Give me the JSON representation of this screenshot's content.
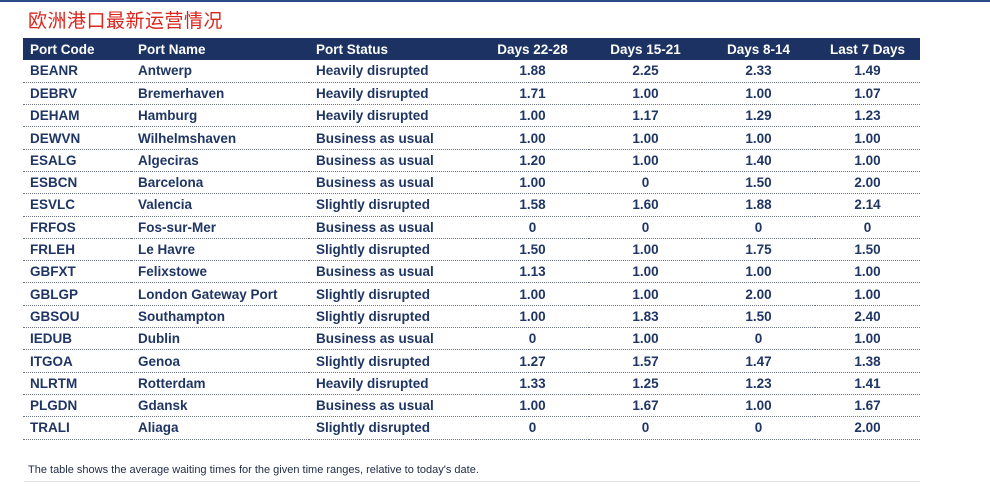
{
  "title": "欧洲港口最新运营情况",
  "table": {
    "headers": [
      "Port Code",
      "Port Name",
      "Port Status",
      "Days 22-28",
      "Days 15-21",
      "Days 8-14",
      "Last 7 Days"
    ],
    "rows": [
      [
        "BEANR",
        "Antwerp",
        "Heavily disrupted",
        "1.88",
        "2.25",
        "2.33",
        "1.49"
      ],
      [
        "DEBRV",
        "Bremerhaven",
        "Heavily disrupted",
        "1.71",
        "1.00",
        "1.00",
        "1.07"
      ],
      [
        "DEHAM",
        "Hamburg",
        "Heavily disrupted",
        "1.00",
        "1.17",
        "1.29",
        "1.23"
      ],
      [
        "DEWVN",
        "Wilhelmshaven",
        "Business as usual",
        "1.00",
        "1.00",
        "1.00",
        "1.00"
      ],
      [
        "ESALG",
        "Algeciras",
        "Business as usual",
        "1.20",
        "1.00",
        "1.40",
        "1.00"
      ],
      [
        "ESBCN",
        "Barcelona",
        "Business as usual",
        "1.00",
        "0",
        "1.50",
        "2.00"
      ],
      [
        "ESVLC",
        "Valencia",
        "Slightly disrupted",
        "1.58",
        "1.60",
        "1.88",
        "2.14"
      ],
      [
        "FRFOS",
        "Fos-sur-Mer",
        "Business as usual",
        "0",
        "0",
        "0",
        "0"
      ],
      [
        "FRLEH",
        "Le Havre",
        "Slightly disrupted",
        "1.50",
        "1.00",
        "1.75",
        "1.50"
      ],
      [
        "GBFXT",
        "Felixstowe",
        "Business as usual",
        "1.13",
        "1.00",
        "1.00",
        "1.00"
      ],
      [
        "GBLGP",
        "London Gateway Port",
        "Slightly disrupted",
        "1.00",
        "1.00",
        "2.00",
        "1.00"
      ],
      [
        "GBSOU",
        "Southampton",
        "Slightly disrupted",
        "1.00",
        "1.83",
        "1.50",
        "2.40"
      ],
      [
        "IEDUB",
        "Dublin",
        "Business as usual",
        "0",
        "1.00",
        "0",
        "1.00"
      ],
      [
        "ITGOA",
        "Genoa",
        "Slightly disrupted",
        "1.27",
        "1.57",
        "1.47",
        "1.38"
      ],
      [
        "NLRTM",
        "Rotterdam",
        "Heavily disrupted",
        "1.33",
        "1.25",
        "1.23",
        "1.41"
      ],
      [
        "PLGDN",
        "Gdansk",
        "Business as usual",
        "1.00",
        "1.67",
        "1.00",
        "1.67"
      ],
      [
        "TRALI",
        "Aliaga",
        "Slightly disrupted",
        "0",
        "0",
        "0",
        "2.00"
      ]
    ]
  },
  "footnote": "The table shows the average waiting times for the given time ranges, relative to today's date.",
  "colors": {
    "title": "#d9261c",
    "header_bg": "#1c3263",
    "header_text": "#ffffff",
    "cell_text": "#1f3564",
    "top_rule": "#2a4d86"
  }
}
